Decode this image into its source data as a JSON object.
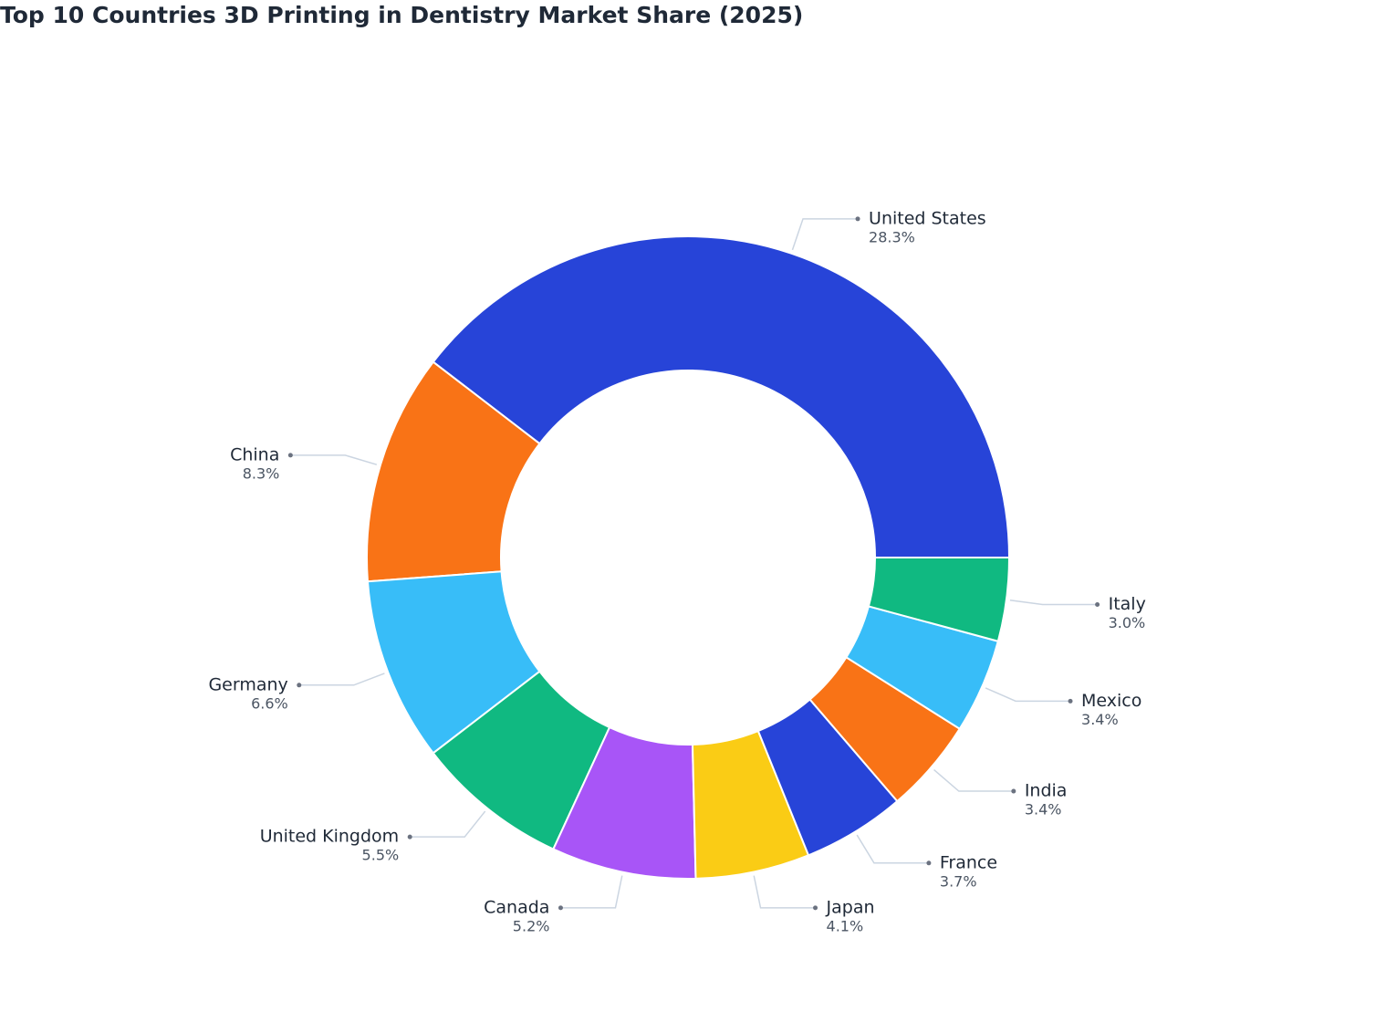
{
  "chart_data": {
    "type": "donut",
    "title": "Top 10 Countries 3D Printing in Dentistry Market Share (2025)",
    "categories": [
      "United States",
      "China",
      "Germany",
      "United Kingdom",
      "Canada",
      "Japan",
      "France",
      "India",
      "Mexico",
      "Italy"
    ],
    "values": [
      28.3,
      8.3,
      6.6,
      5.5,
      5.2,
      4.1,
      3.7,
      3.4,
      3.4,
      3.0
    ],
    "value_labels": [
      "28.3%",
      "8.3%",
      "6.6%",
      "5.5%",
      "5.2%",
      "4.1%",
      "3.7%",
      "3.4%",
      "3.4%",
      "3.0%"
    ],
    "colors": [
      "#2744d8",
      "#f97316",
      "#38bdf8",
      "#10b981",
      "#a855f7",
      "#facc15",
      "#2744d8",
      "#f97316",
      "#38bdf8",
      "#10b981"
    ]
  }
}
